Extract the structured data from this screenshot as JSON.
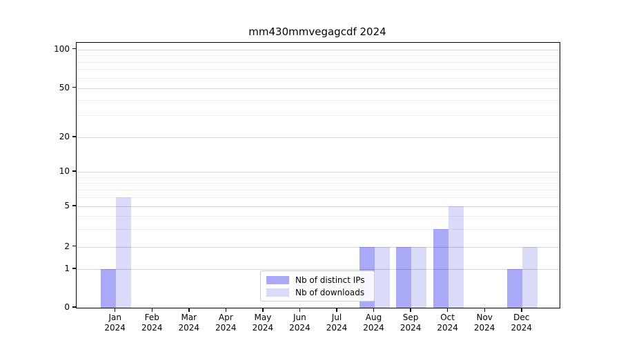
{
  "title": "mm430mmvegagcdf 2024",
  "colors": {
    "distinct_ips": "#a9a9f7",
    "downloads": "#dadaf9",
    "axis": "#000000",
    "grid_minor": "#f0f0f0",
    "grid_major": "#d9d9d9",
    "legend_border": "#cccccc"
  },
  "legend": {
    "items": [
      {
        "label": "Nb of distinct IPs",
        "color": "#a9a9f7"
      },
      {
        "label": "Nb of downloads",
        "color": "#dadaf9"
      }
    ]
  },
  "chart_data": {
    "type": "bar",
    "title": "mm430mmvegagcdf 2024",
    "categories": [
      "Jan",
      "Feb",
      "Mar",
      "Apr",
      "May",
      "Jun",
      "Jul",
      "Aug",
      "Sep",
      "Oct",
      "Nov",
      "Dec"
    ],
    "category_year": "2024",
    "series": [
      {
        "name": "Nb of distinct IPs",
        "color": "#a9a9f7",
        "values": [
          1,
          0,
          0,
          0,
          0,
          0,
          0,
          2,
          2,
          3,
          0,
          1
        ]
      },
      {
        "name": "Nb of downloads",
        "color": "#dadaf9",
        "values": [
          6,
          0,
          0,
          0,
          0,
          0,
          0,
          2,
          2,
          5,
          0,
          2
        ]
      }
    ],
    "yscale": "symlog",
    "yticks": [
      0,
      1,
      2,
      5,
      10,
      20,
      50,
      100
    ],
    "yticks_minor": [
      3,
      4,
      6,
      7,
      8,
      9,
      30,
      40,
      60,
      70,
      80,
      90
    ],
    "ylim": [
      0,
      100
    ],
    "xlabel": "",
    "ylabel": "",
    "grid": "horizontal",
    "legend_position": "lower center"
  }
}
